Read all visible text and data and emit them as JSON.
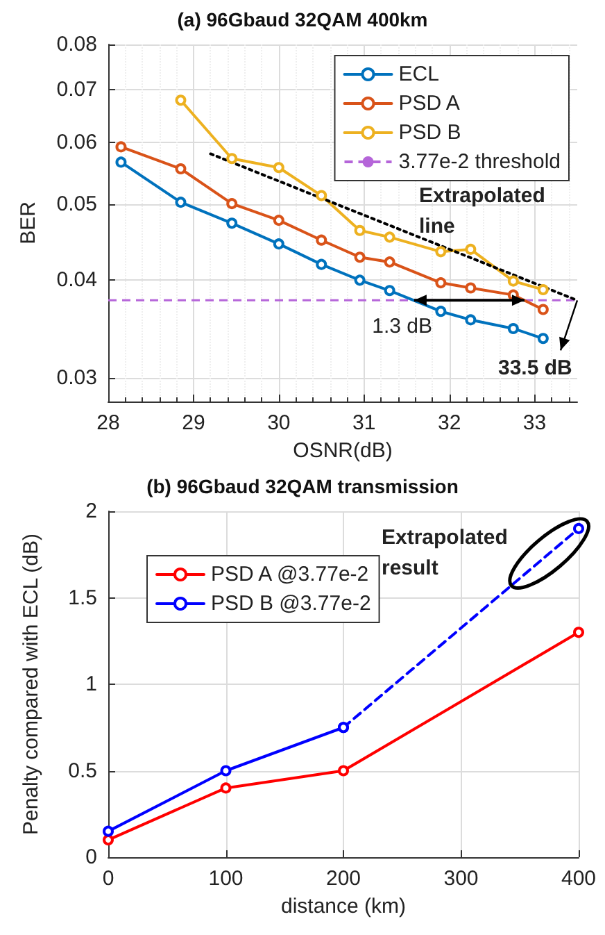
{
  "chart_data": [
    {
      "type": "line",
      "title": "(a) 96Gbaud 32QAM 400km",
      "xlabel": "OSNR(dB)",
      "ylabel": "BER",
      "log": "y",
      "grid": true,
      "legend": "top right",
      "marker": "circle",
      "line_style": "solid",
      "x": [
        28.15,
        28.85,
        29.45,
        30.0,
        30.5,
        30.95,
        31.3,
        31.9,
        32.25,
        32.75,
        33.1
      ],
      "xlim": [
        28,
        33.5
      ],
      "xticks": [
        28,
        29,
        30,
        31,
        32,
        33
      ],
      "ylim": [
        0.028,
        0.08
      ],
      "yticks": [
        0.03,
        0.04,
        0.05,
        0.06,
        0.07,
        0.08
      ],
      "series": [
        {
          "name": "ECL",
          "color": "#0072bd",
          "values": [
            0.0566,
            0.0503,
            0.0473,
            0.0445,
            0.0419,
            0.04,
            0.0388,
            0.0365,
            0.0356,
            0.0347,
            0.0337
          ]
        },
        {
          "name": "PSD A",
          "color": "#d95319",
          "values": [
            0.0592,
            0.0555,
            0.0501,
            0.0477,
            0.045,
            0.0428,
            0.0422,
            0.0397,
            0.0391,
            0.0383,
            0.0367
          ]
        },
        {
          "name": "PSD B",
          "color": "#edb120",
          "values": [
            null,
            0.0679,
            0.0572,
            0.0557,
            0.0513,
            0.0463,
            0.0454,
            0.0435,
            0.0438,
            0.0399,
            0.0389
          ]
        },
        {
          "type": "line",
          "color": "#000000",
          "line_style": "dotted",
          "marker": "none",
          "x": [
            29.2,
            33.5
          ],
          "values": [
            0.058,
            0.0377
          ]
        }
      ],
      "ref_lines": [
        {
          "axis": "y",
          "value": 0.0377,
          "label": "3.77e-2 threshold",
          "color": "#b565d9",
          "line_style": "dashed"
        }
      ],
      "annotations": [
        "Extrapolated line",
        {
          "text": "1.3 dB",
          "x": 32.2,
          "y": 0.0377
        },
        {
          "text": "33.5 dB",
          "x": 33.5,
          "y": 0.0377
        }
      ]
    },
    {
      "type": "line",
      "title": "(b) 96Gbaud 32QAM transmission",
      "xlabel": "distance (km)",
      "ylabel": "Penalty compared with ECL (dB)",
      "grid": true,
      "legend": "top left",
      "marker": "circle",
      "x": [
        0,
        100,
        200,
        400
      ],
      "xlim": [
        0,
        400
      ],
      "xticks": [
        0,
        100,
        200,
        300,
        400
      ],
      "ylim": [
        0,
        2
      ],
      "yticks": [
        0,
        0.5,
        1,
        1.5,
        2
      ],
      "series": [
        {
          "name": "PSD A @3.77e-2",
          "color": "#ff0000",
          "values": [
            0.1,
            0.4,
            0.5,
            1.3
          ]
        },
        {
          "name": "PSD B @3.77e-2",
          "color": "#0000ff",
          "values": [
            0.15,
            0.5,
            0.75,
            null
          ]
        },
        {
          "type": "line",
          "color": "#0000ff",
          "line_style": "dashed",
          "x": [
            200,
            400
          ],
          "values": [
            0.75,
            1.9
          ]
        }
      ],
      "annotations": [
        "Extrapolated result"
      ]
    }
  ]
}
